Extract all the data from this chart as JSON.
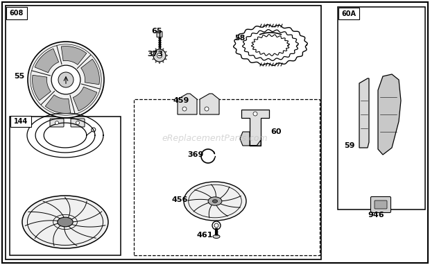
{
  "bg_color": "#ffffff",
  "watermark": "eReplacementParts.com",
  "figsize": [
    6.2,
    3.82
  ],
  "dpi": 100
}
